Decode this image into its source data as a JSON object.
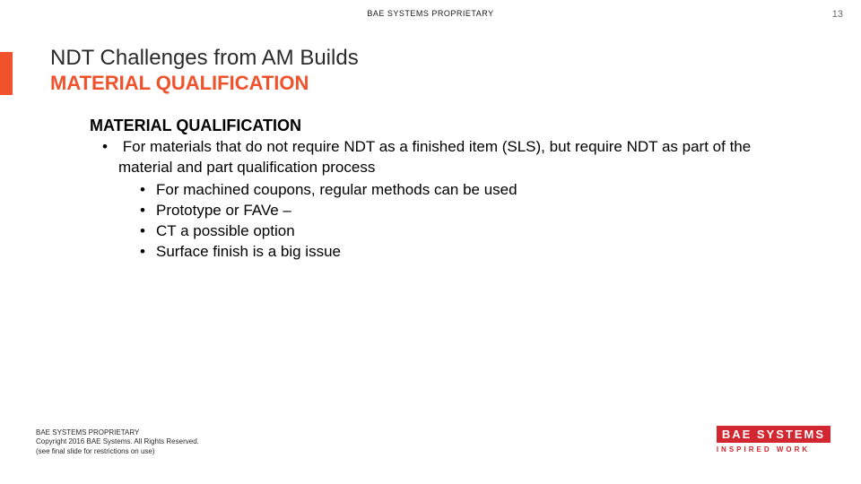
{
  "header": {
    "classification": "BAE SYSTEMS PROPRIETARY",
    "page_number": "13"
  },
  "title": {
    "line1": "NDT Challenges from AM Builds",
    "line2": "MATERIAL QUALIFICATION"
  },
  "content": {
    "section_head": "MATERIAL QUALIFICATION",
    "bullet1": "For materials that do not require NDT as a finished item (SLS), but require NDT as part of the material and part qualification process",
    "sub": {
      "b1": "For machined coupons, regular methods can be used",
      "b2": "Prototype or FAVe –",
      "b3": "CT a possible option",
      "b4": "Surface finish is a big issue"
    }
  },
  "footer": {
    "line1": "BAE SYSTEMS PROPRIETARY",
    "line2": "Copyright 2016 BAE Systems. All Rights Reserved.",
    "line3": "(see final slide for restrictions on use)"
  },
  "logo": {
    "name": "BAE SYSTEMS",
    "tagline": "INSPIRED WORK"
  },
  "colors": {
    "accent": "#f0522b",
    "logo_red": "#d22630",
    "text": "#000000",
    "background": "#ffffff"
  }
}
